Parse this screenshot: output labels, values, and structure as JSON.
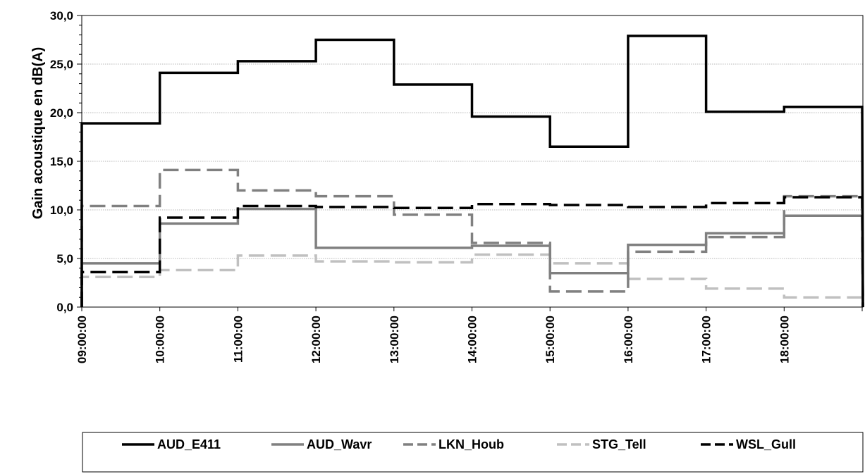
{
  "chart_data": {
    "type": "line",
    "step": true,
    "title": "",
    "xlabel": "",
    "ylabel": "Gain acoustique en dB(A)",
    "ylim": [
      0,
      30
    ],
    "yticks": [
      "0,0",
      "5,0",
      "10,0",
      "15,0",
      "20,0",
      "25,0",
      "30,0"
    ],
    "categories": [
      "09:00:00",
      "10:00:00",
      "11:00:00",
      "12:00:00",
      "13:00:00",
      "14:00:00",
      "15:00:00",
      "16:00:00",
      "17:00:00",
      "18:00:00"
    ],
    "grid": true,
    "legend_position": "bottom",
    "series": [
      {
        "name": "AUD_E411",
        "color": "#000000",
        "dash": "solid",
        "values": [
          18.9,
          24.1,
          25.3,
          27.5,
          22.9,
          19.6,
          16.5,
          27.9,
          20.1,
          20.6
        ]
      },
      {
        "name": "AUD_Wavr",
        "color": "#808080",
        "dash": "solid",
        "values": [
          4.5,
          8.6,
          10.1,
          6.1,
          6.1,
          6.3,
          3.5,
          6.4,
          7.6,
          9.4
        ]
      },
      {
        "name": "LKN_Houb",
        "color": "#808080",
        "dash": "dashed",
        "values": [
          10.4,
          14.1,
          12.0,
          11.4,
          9.5,
          6.6,
          1.6,
          5.7,
          7.2,
          11.4
        ]
      },
      {
        "name": "STG_Tell",
        "color": "#c0c0c0",
        "dash": "dashed",
        "values": [
          3.1,
          3.8,
          5.3,
          4.7,
          4.6,
          5.4,
          4.5,
          2.9,
          1.9,
          1.0
        ]
      },
      {
        "name": "WSL_Gull",
        "color": "#000000",
        "dash": "dashed",
        "values": [
          3.6,
          9.2,
          10.4,
          10.3,
          10.2,
          10.6,
          10.5,
          10.3,
          10.7,
          11.3
        ]
      }
    ]
  }
}
